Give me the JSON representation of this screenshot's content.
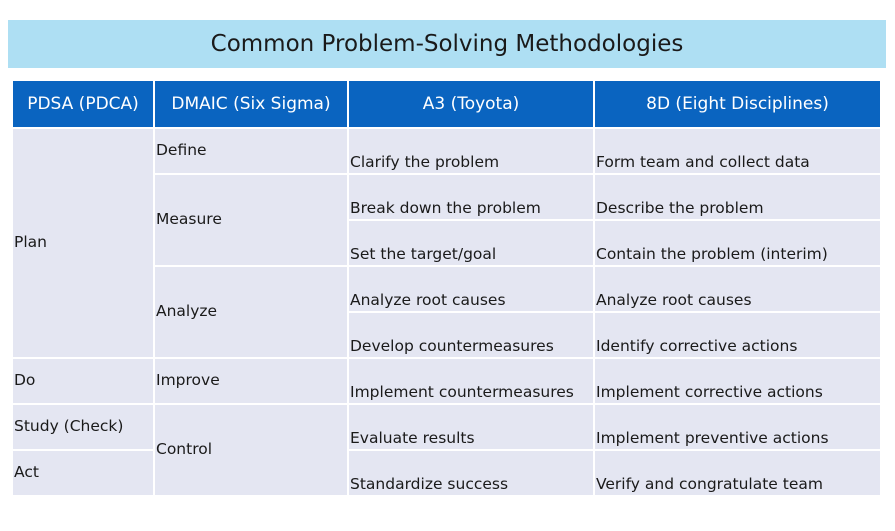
{
  "title": "Common Problem-Solving Methodologies",
  "headers": [
    "PDSA (PDCA)",
    "DMAIC (Six Sigma)",
    "A3 (Toyota)",
    "8D (Eight Disciplines)"
  ],
  "pdsa": {
    "plan": "Plan",
    "do": "Do",
    "study": "Study (Check)",
    "act": "Act"
  },
  "dmaic": {
    "define": "Define",
    "measure": "Measure",
    "analyze": "Analyze",
    "improve": "Improve",
    "control": "Control"
  },
  "a3": [
    "Clarify the problem",
    "Break down the problem",
    "Set the target/goal",
    "Analyze root causes",
    "Develop countermeasures",
    "Implement countermeasures",
    "Evaluate results",
    "Standardize success"
  ],
  "eight_d": [
    "Form team and collect data",
    "Describe the problem",
    "Contain the problem (interim)",
    "Analyze root causes",
    "Identify corrective actions",
    "Implement corrective actions",
    "Implement preventive actions",
    "Verify and congratulate team"
  ],
  "colors": {
    "title_bg": "#aedff3",
    "header_bg": "#0a64c0",
    "cell_bg": "#e4e6f2"
  }
}
